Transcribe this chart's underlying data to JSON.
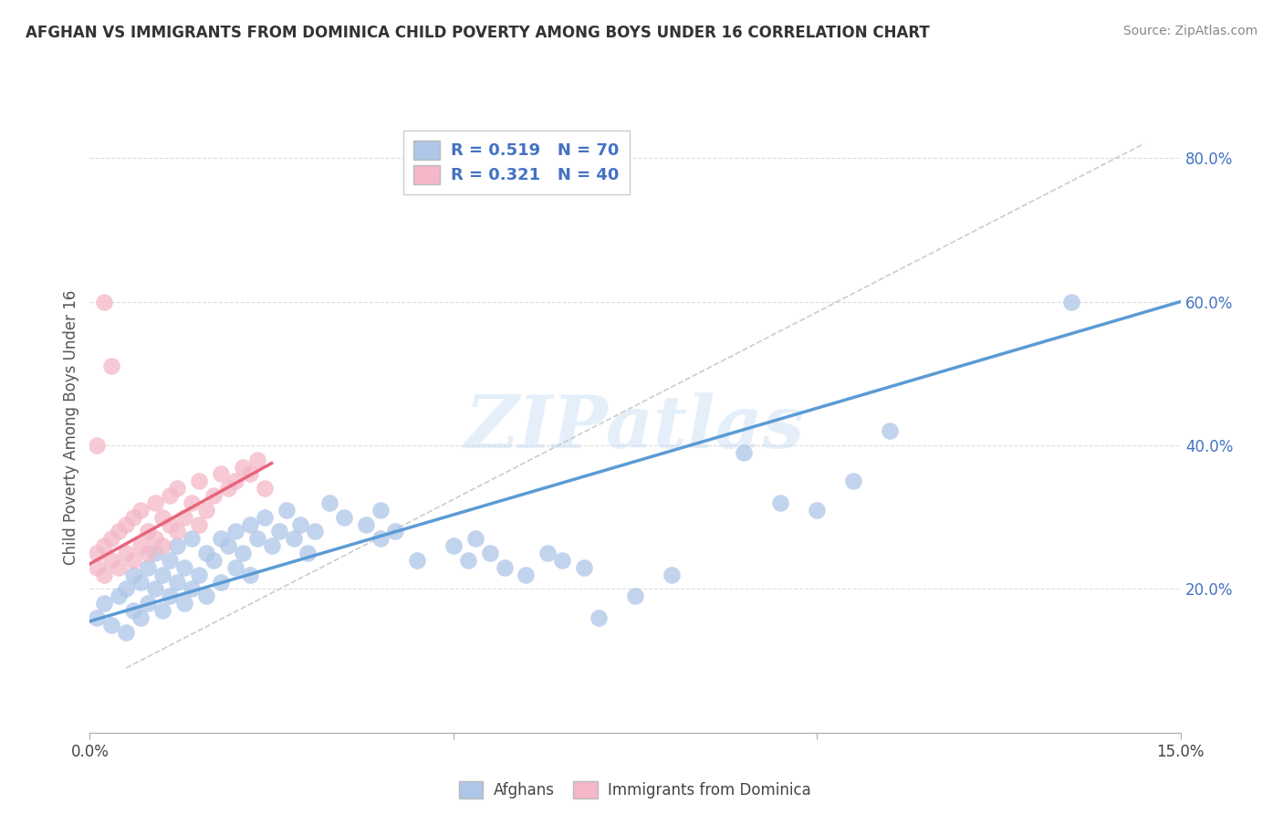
{
  "title": "AFGHAN VS IMMIGRANTS FROM DOMINICA CHILD POVERTY AMONG BOYS UNDER 16 CORRELATION CHART",
  "source": "Source: ZipAtlas.com",
  "ylabel": "Child Poverty Among Boys Under 16",
  "xlim": [
    0.0,
    0.15
  ],
  "ylim": [
    0.0,
    0.85
  ],
  "x_tick_positions": [
    0.0,
    0.05,
    0.1,
    0.15
  ],
  "x_tick_labels": [
    "0.0%",
    "",
    "",
    "15.0%"
  ],
  "y_tick_positions": [
    0.0,
    0.2,
    0.4,
    0.6,
    0.8
  ],
  "y_tick_labels": [
    "",
    "20.0%",
    "40.0%",
    "60.0%",
    "80.0%"
  ],
  "legend_label_afghans": "Afghans",
  "legend_label_dominica": "Immigrants from Dominica",
  "blue_color": "#5b9bd5",
  "pink_color": "#e8647a",
  "blue_scatter_color": "#aec6e8",
  "pink_scatter_color": "#f4b8c8",
  "watermark": "ZIPatlas",
  "blue_R": 0.519,
  "blue_N": 70,
  "pink_R": 0.321,
  "pink_N": 40,
  "blue_points": [
    [
      0.001,
      0.16
    ],
    [
      0.002,
      0.18
    ],
    [
      0.003,
      0.15
    ],
    [
      0.004,
      0.19
    ],
    [
      0.005,
      0.14
    ],
    [
      0.005,
      0.2
    ],
    [
      0.006,
      0.17
    ],
    [
      0.006,
      0.22
    ],
    [
      0.007,
      0.16
    ],
    [
      0.007,
      0.21
    ],
    [
      0.008,
      0.18
    ],
    [
      0.008,
      0.23
    ],
    [
      0.009,
      0.2
    ],
    [
      0.009,
      0.25
    ],
    [
      0.01,
      0.17
    ],
    [
      0.01,
      0.22
    ],
    [
      0.011,
      0.19
    ],
    [
      0.011,
      0.24
    ],
    [
      0.012,
      0.21
    ],
    [
      0.012,
      0.26
    ],
    [
      0.013,
      0.18
    ],
    [
      0.013,
      0.23
    ],
    [
      0.014,
      0.2
    ],
    [
      0.014,
      0.27
    ],
    [
      0.015,
      0.22
    ],
    [
      0.016,
      0.25
    ],
    [
      0.016,
      0.19
    ],
    [
      0.017,
      0.24
    ],
    [
      0.018,
      0.27
    ],
    [
      0.018,
      0.21
    ],
    [
      0.019,
      0.26
    ],
    [
      0.02,
      0.23
    ],
    [
      0.02,
      0.28
    ],
    [
      0.021,
      0.25
    ],
    [
      0.022,
      0.29
    ],
    [
      0.022,
      0.22
    ],
    [
      0.023,
      0.27
    ],
    [
      0.024,
      0.3
    ],
    [
      0.025,
      0.26
    ],
    [
      0.026,
      0.28
    ],
    [
      0.027,
      0.31
    ],
    [
      0.028,
      0.27
    ],
    [
      0.029,
      0.29
    ],
    [
      0.03,
      0.25
    ],
    [
      0.031,
      0.28
    ],
    [
      0.033,
      0.32
    ],
    [
      0.035,
      0.3
    ],
    [
      0.038,
      0.29
    ],
    [
      0.04,
      0.27
    ],
    [
      0.04,
      0.31
    ],
    [
      0.042,
      0.28
    ],
    [
      0.045,
      0.24
    ],
    [
      0.05,
      0.26
    ],
    [
      0.052,
      0.24
    ],
    [
      0.053,
      0.27
    ],
    [
      0.055,
      0.25
    ],
    [
      0.057,
      0.23
    ],
    [
      0.06,
      0.22
    ],
    [
      0.063,
      0.25
    ],
    [
      0.065,
      0.24
    ],
    [
      0.068,
      0.23
    ],
    [
      0.07,
      0.16
    ],
    [
      0.075,
      0.19
    ],
    [
      0.08,
      0.22
    ],
    [
      0.09,
      0.39
    ],
    [
      0.095,
      0.32
    ],
    [
      0.1,
      0.31
    ],
    [
      0.105,
      0.35
    ],
    [
      0.11,
      0.42
    ],
    [
      0.135,
      0.6
    ]
  ],
  "pink_points": [
    [
      0.001,
      0.23
    ],
    [
      0.001,
      0.25
    ],
    [
      0.002,
      0.22
    ],
    [
      0.002,
      0.26
    ],
    [
      0.003,
      0.24
    ],
    [
      0.003,
      0.27
    ],
    [
      0.004,
      0.23
    ],
    [
      0.004,
      0.28
    ],
    [
      0.005,
      0.25
    ],
    [
      0.005,
      0.29
    ],
    [
      0.006,
      0.24
    ],
    [
      0.006,
      0.3
    ],
    [
      0.007,
      0.26
    ],
    [
      0.007,
      0.31
    ],
    [
      0.008,
      0.28
    ],
    [
      0.008,
      0.25
    ],
    [
      0.009,
      0.27
    ],
    [
      0.009,
      0.32
    ],
    [
      0.01,
      0.26
    ],
    [
      0.01,
      0.3
    ],
    [
      0.011,
      0.29
    ],
    [
      0.011,
      0.33
    ],
    [
      0.012,
      0.28
    ],
    [
      0.012,
      0.34
    ],
    [
      0.013,
      0.3
    ],
    [
      0.014,
      0.32
    ],
    [
      0.015,
      0.29
    ],
    [
      0.015,
      0.35
    ],
    [
      0.016,
      0.31
    ],
    [
      0.017,
      0.33
    ],
    [
      0.018,
      0.36
    ],
    [
      0.019,
      0.34
    ],
    [
      0.02,
      0.35
    ],
    [
      0.021,
      0.37
    ],
    [
      0.022,
      0.36
    ],
    [
      0.023,
      0.38
    ],
    [
      0.024,
      0.34
    ],
    [
      0.001,
      0.4
    ],
    [
      0.003,
      0.51
    ],
    [
      0.002,
      0.6
    ]
  ],
  "blue_line": {
    "x0": 0.0,
    "y0": 0.155,
    "x1": 0.15,
    "y1": 0.6
  },
  "pink_line": {
    "x0": 0.0,
    "y0": 0.235,
    "x1": 0.025,
    "y1": 0.375
  },
  "dashed_line": {
    "x0": 0.005,
    "y0": 0.09,
    "x1": 0.145,
    "y1": 0.82
  }
}
